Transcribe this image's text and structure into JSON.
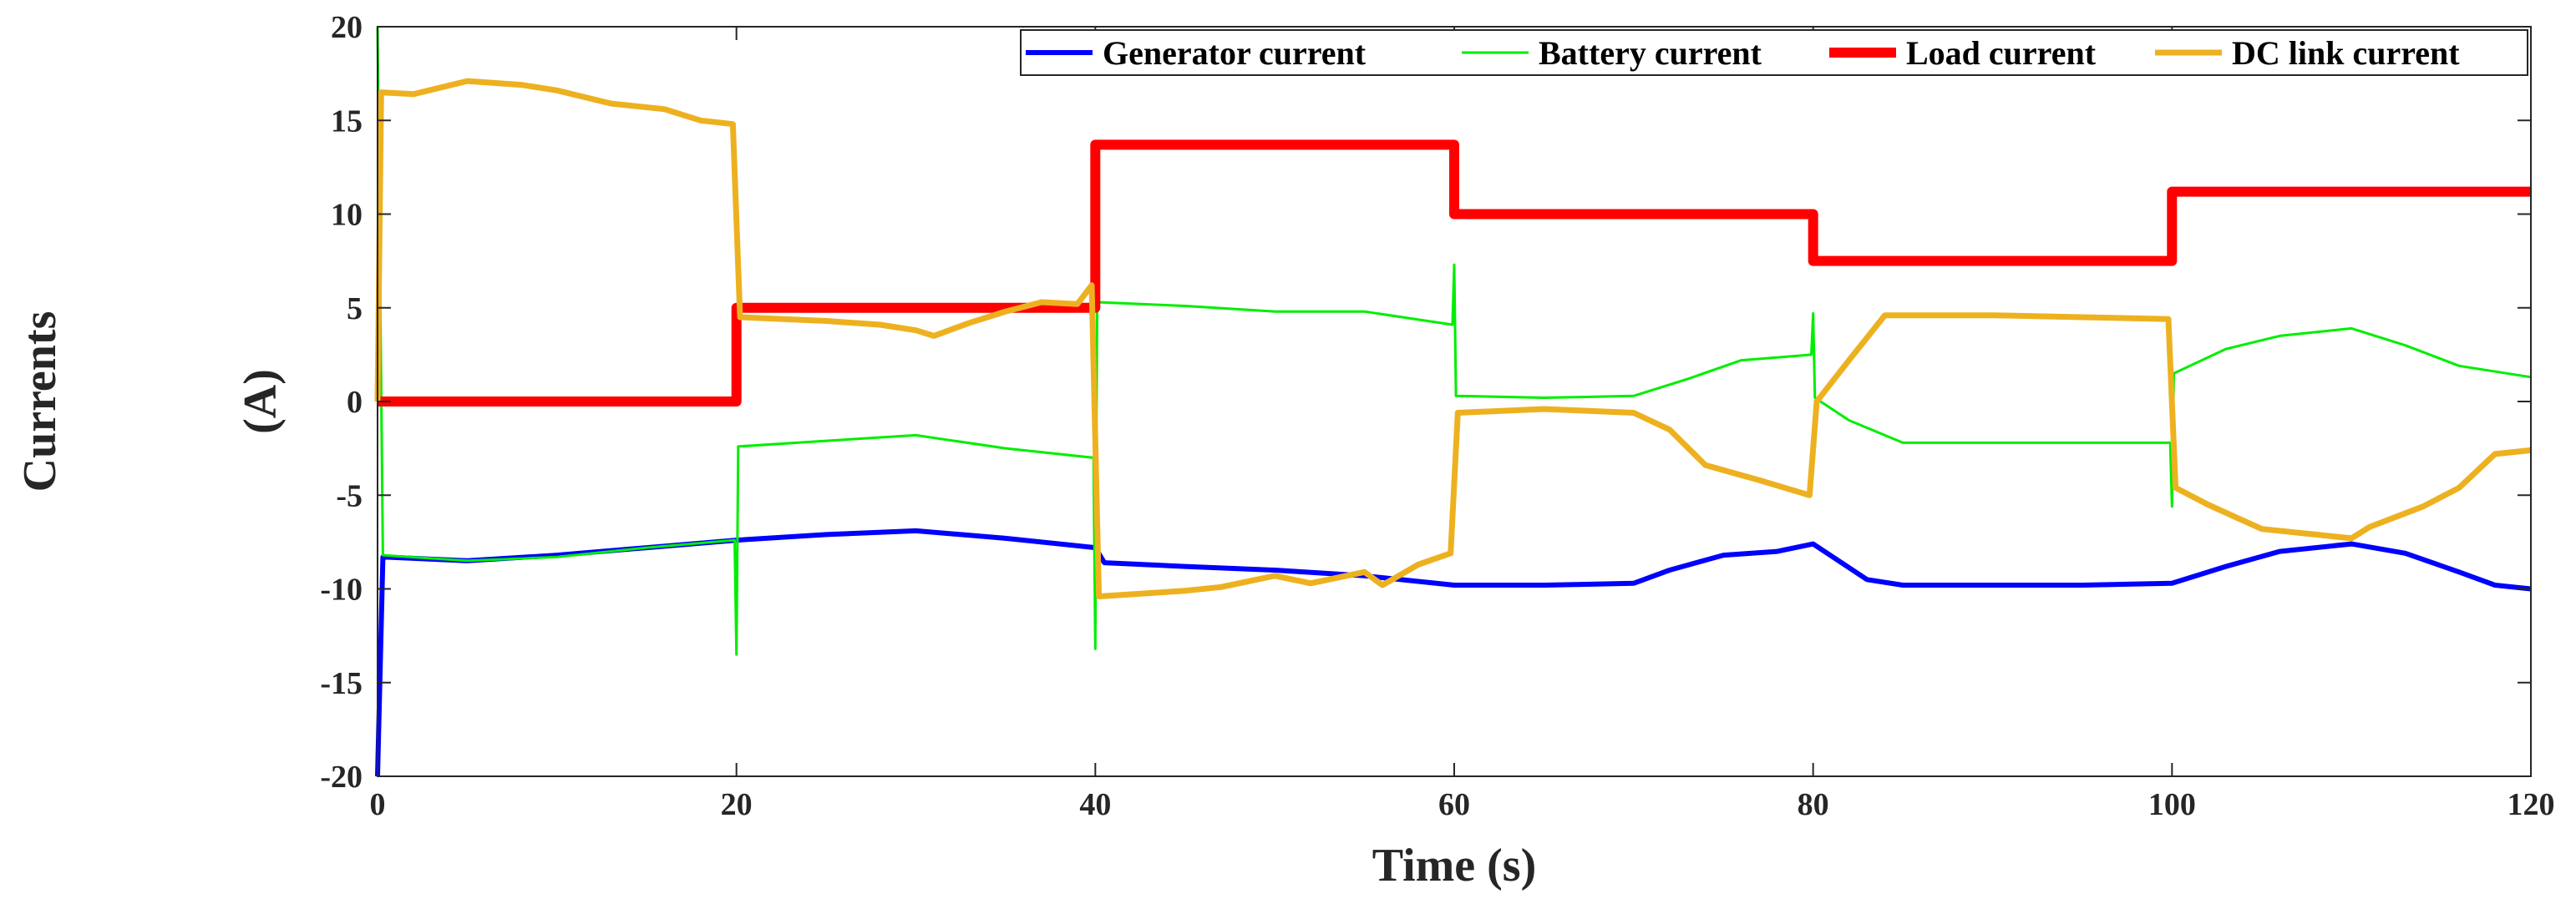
{
  "chart_data": {
    "type": "line",
    "outer_ylabel": "Currents",
    "ylabel": "(A)",
    "xlabel": "Time (s)",
    "xlim": [
      0,
      120
    ],
    "ylim": [
      -20,
      20
    ],
    "xticks": [
      0,
      20,
      40,
      60,
      80,
      100,
      120
    ],
    "yticks": [
      -20,
      -15,
      -10,
      -5,
      0,
      5,
      10,
      15,
      20
    ],
    "xtick_labels": [
      "0",
      "20",
      "40",
      "60",
      "80",
      "100",
      "120"
    ],
    "ytick_labels": [
      "-20",
      "-15",
      "-10",
      "-5",
      "0",
      "5",
      "10",
      "15",
      "20"
    ],
    "grid": false,
    "legend_position": "top-right",
    "series": [
      {
        "name": "Generator current",
        "color": "#0000ff",
        "points": [
          [
            0,
            -20
          ],
          [
            0.3,
            -8.3
          ],
          [
            5,
            -8.5
          ],
          [
            10,
            -8.2
          ],
          [
            15,
            -7.8
          ],
          [
            20,
            -7.4
          ],
          [
            25,
            -7.1
          ],
          [
            30,
            -6.9
          ],
          [
            35,
            -7.3
          ],
          [
            40,
            -7.8
          ],
          [
            40.5,
            -8.6
          ],
          [
            45,
            -8.8
          ],
          [
            50,
            -9.0
          ],
          [
            55,
            -9.3
          ],
          [
            60,
            -9.8
          ],
          [
            65,
            -9.8
          ],
          [
            70,
            -9.7
          ],
          [
            72,
            -9.0
          ],
          [
            75,
            -8.2
          ],
          [
            78,
            -8.0
          ],
          [
            80,
            -7.6
          ],
          [
            83,
            -9.5
          ],
          [
            85,
            -9.8
          ],
          [
            90,
            -9.8
          ],
          [
            95,
            -9.8
          ],
          [
            100,
            -9.7
          ],
          [
            103,
            -8.8
          ],
          [
            106,
            -8.0
          ],
          [
            110,
            -7.6
          ],
          [
            113,
            -8.1
          ],
          [
            116,
            -9.1
          ],
          [
            118,
            -9.8
          ],
          [
            120,
            -10.0
          ]
        ]
      },
      {
        "name": "Battery current",
        "color": "#00ee00",
        "points": [
          [
            0,
            20
          ],
          [
            0.3,
            -8.2
          ],
          [
            5,
            -8.5
          ],
          [
            10,
            -8.3
          ],
          [
            15,
            -7.8
          ],
          [
            19.9,
            -7.4
          ],
          [
            20,
            -13.5
          ],
          [
            20.1,
            -2.4
          ],
          [
            25,
            -2.1
          ],
          [
            30,
            -1.8
          ],
          [
            35,
            -2.5
          ],
          [
            39.9,
            -3.0
          ],
          [
            40,
            -13.2
          ],
          [
            40.1,
            5.3
          ],
          [
            45,
            5.1
          ],
          [
            50,
            4.8
          ],
          [
            55,
            4.8
          ],
          [
            59.9,
            4.1
          ],
          [
            60,
            7.3
          ],
          [
            60.1,
            0.3
          ],
          [
            65,
            0.2
          ],
          [
            70,
            0.3
          ],
          [
            73,
            1.2
          ],
          [
            76,
            2.2
          ],
          [
            79.9,
            2.5
          ],
          [
            80,
            4.7
          ],
          [
            80.1,
            0.2
          ],
          [
            82,
            -1.0
          ],
          [
            85,
            -2.2
          ],
          [
            90,
            -2.2
          ],
          [
            95,
            -2.2
          ],
          [
            99.9,
            -2.2
          ],
          [
            100,
            -5.6
          ],
          [
            100.1,
            1.5
          ],
          [
            103,
            2.8
          ],
          [
            106,
            3.5
          ],
          [
            110,
            3.9
          ],
          [
            113,
            3.0
          ],
          [
            116,
            1.9
          ],
          [
            120,
            1.3
          ]
        ]
      },
      {
        "name": "Load current",
        "color": "#ff0000",
        "points": [
          [
            0,
            0
          ],
          [
            20,
            0
          ],
          [
            20,
            5
          ],
          [
            40,
            5
          ],
          [
            40,
            13.7
          ],
          [
            60,
            13.7
          ],
          [
            60,
            10
          ],
          [
            80,
            10
          ],
          [
            80,
            7.5
          ],
          [
            100,
            7.5
          ],
          [
            100,
            11.2
          ],
          [
            120,
            11.2
          ]
        ]
      },
      {
        "name": "DC link current",
        "color": "#edb120",
        "points": [
          [
            0,
            0
          ],
          [
            0.2,
            16.5
          ],
          [
            2,
            16.4
          ],
          [
            5,
            17.1
          ],
          [
            8,
            16.9
          ],
          [
            10,
            16.6
          ],
          [
            13,
            15.9
          ],
          [
            16,
            15.6
          ],
          [
            18,
            15.0
          ],
          [
            19.8,
            14.8
          ],
          [
            20.2,
            4.5
          ],
          [
            25,
            4.3
          ],
          [
            28,
            4.1
          ],
          [
            30,
            3.8
          ],
          [
            31,
            3.5
          ],
          [
            33,
            4.2
          ],
          [
            35,
            4.8
          ],
          [
            37,
            5.3
          ],
          [
            39,
            5.2
          ],
          [
            39.8,
            6.2
          ],
          [
            40.2,
            -10.4
          ],
          [
            45,
            -10.1
          ],
          [
            47,
            -9.9
          ],
          [
            50,
            -9.3
          ],
          [
            52,
            -9.7
          ],
          [
            55,
            -9.1
          ],
          [
            56,
            -9.8
          ],
          [
            58,
            -8.7
          ],
          [
            59.8,
            -8.1
          ],
          [
            60.2,
            -0.6
          ],
          [
            65,
            -0.4
          ],
          [
            70,
            -0.6
          ],
          [
            72,
            -1.5
          ],
          [
            74,
            -3.4
          ],
          [
            77,
            -4.2
          ],
          [
            79.8,
            -5.0
          ],
          [
            80.2,
            0.0
          ],
          [
            82,
            2.2
          ],
          [
            84,
            4.6
          ],
          [
            90,
            4.6
          ],
          [
            95,
            4.5
          ],
          [
            99.8,
            4.4
          ],
          [
            100.2,
            -4.6
          ],
          [
            102,
            -5.5
          ],
          [
            105,
            -6.8
          ],
          [
            108,
            -7.1
          ],
          [
            110,
            -7.3
          ],
          [
            111,
            -6.7
          ],
          [
            114,
            -5.6
          ],
          [
            116,
            -4.6
          ],
          [
            118,
            -2.8
          ],
          [
            120,
            -2.6
          ]
        ]
      }
    ]
  }
}
